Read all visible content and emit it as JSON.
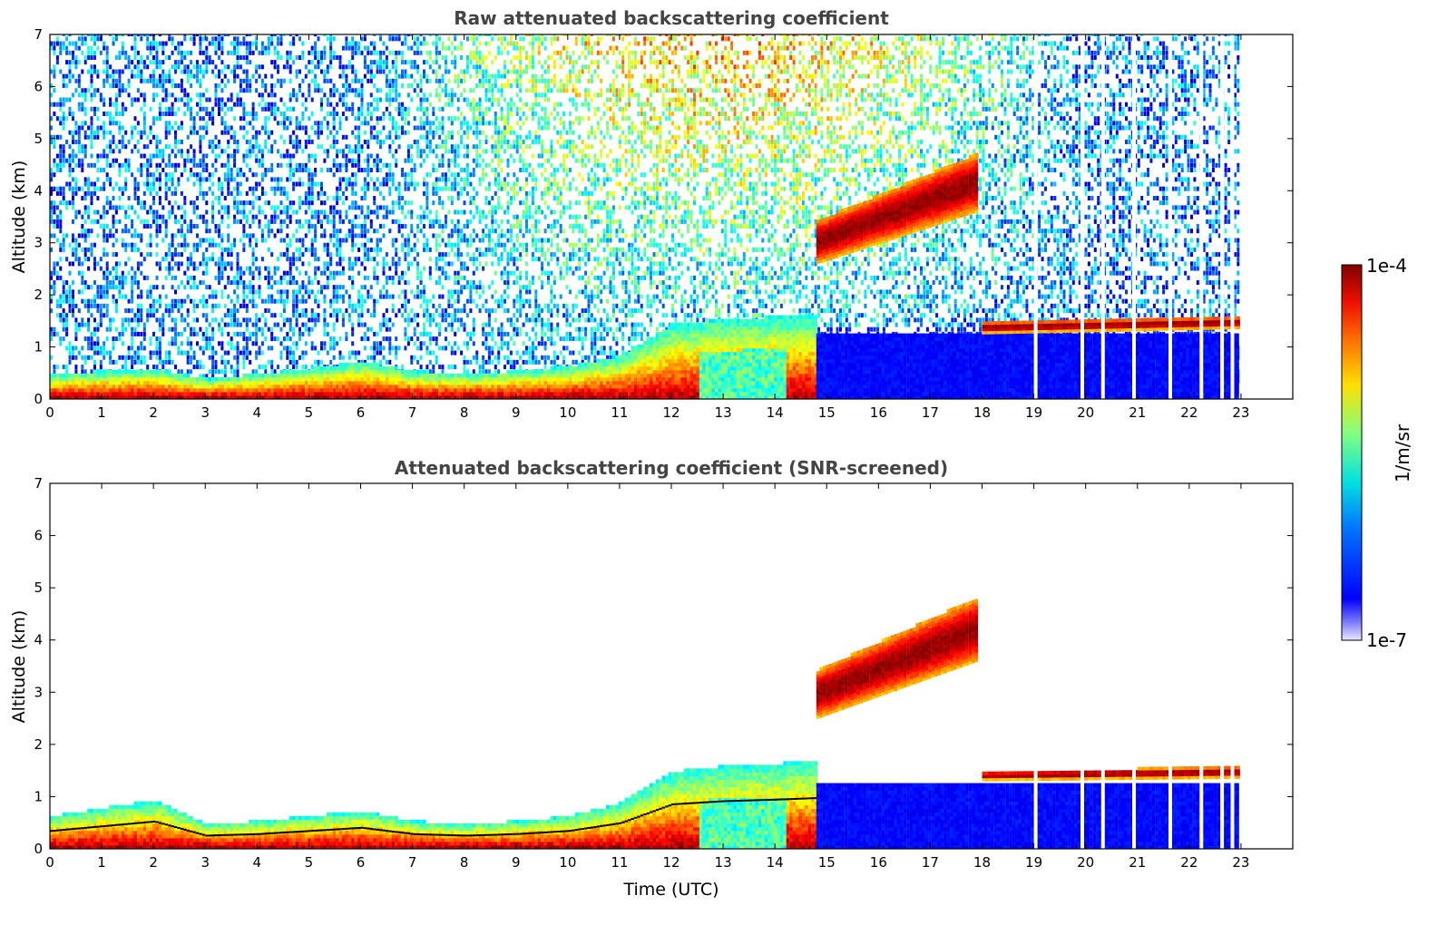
{
  "figure": {
    "colorbar": {
      "max_label": "1e-4",
      "min_label": "1e-7",
      "unit_label": "1/m/sr",
      "scale": "log",
      "range": [
        1e-07,
        0.0001
      ],
      "colormap": "jet"
    },
    "xlabel": "Time (UTC)"
  },
  "chart_data": [
    {
      "type": "heatmap",
      "title": "Raw attenuated backscattering coefficient",
      "xlabel": "",
      "ylabel": "Altitude (km)",
      "xlim": [
        0,
        24
      ],
      "ylim": [
        0,
        7
      ],
      "xticks": [
        "0",
        "1",
        "2",
        "3",
        "4",
        "5",
        "6",
        "7",
        "8",
        "9",
        "10",
        "11",
        "12",
        "13",
        "14",
        "15",
        "16",
        "17",
        "18",
        "19",
        "20",
        "21",
        "22",
        "23"
      ],
      "yticks": [
        "0",
        "1",
        "2",
        "3",
        "4",
        "5",
        "6",
        "7"
      ],
      "data_end_time": 22.95,
      "boundary_layer_top_km": [
        {
          "t": 0,
          "h": 0.45
        },
        {
          "t": 1,
          "h": 0.5
        },
        {
          "t": 2,
          "h": 0.55
        },
        {
          "t": 3,
          "h": 0.35
        },
        {
          "t": 4,
          "h": 0.45
        },
        {
          "t": 5,
          "h": 0.55
        },
        {
          "t": 6,
          "h": 0.7
        },
        {
          "t": 7,
          "h": 0.5
        },
        {
          "t": 8,
          "h": 0.45
        },
        {
          "t": 9,
          "h": 0.5
        },
        {
          "t": 10,
          "h": 0.6
        },
        {
          "t": 11,
          "h": 0.8
        },
        {
          "t": 12,
          "h": 1.4
        },
        {
          "t": 13,
          "h": 1.5
        },
        {
          "t": 14,
          "h": 1.55
        },
        {
          "t": 14.8,
          "h": 1.6
        }
      ],
      "cloud_layers": [
        {
          "t_start": 14.8,
          "t_end": 17.9,
          "base_start_km": 2.6,
          "base_end_km": 3.6,
          "top_start_km": 3.4,
          "top_end_km": 4.7
        },
        {
          "t_start": 18.0,
          "t_end": 22.95,
          "base_start_km": 1.25,
          "base_end_km": 1.35,
          "top_start_km": 1.45,
          "top_end_km": 1.55
        }
      ]
    },
    {
      "type": "heatmap",
      "title": "Attenuated backscattering coefficient (SNR-screened)",
      "xlabel": "Time (UTC)",
      "ylabel": "Altitude (km)",
      "xlim": [
        0,
        24
      ],
      "ylim": [
        0,
        7
      ],
      "xticks": [
        "0",
        "1",
        "2",
        "3",
        "4",
        "5",
        "6",
        "7",
        "8",
        "9",
        "10",
        "11",
        "12",
        "13",
        "14",
        "15",
        "16",
        "17",
        "18",
        "19",
        "20",
        "21",
        "22",
        "23"
      ],
      "yticks": [
        "0",
        "1",
        "2",
        "3",
        "4",
        "5",
        "6",
        "7"
      ],
      "data_end_time": 22.95,
      "boundary_layer_top_km": [
        {
          "t": 0,
          "h": 0.6
        },
        {
          "t": 1,
          "h": 0.75
        },
        {
          "t": 2,
          "h": 0.9
        },
        {
          "t": 3,
          "h": 0.45
        },
        {
          "t": 4,
          "h": 0.5
        },
        {
          "t": 5,
          "h": 0.6
        },
        {
          "t": 6,
          "h": 0.7
        },
        {
          "t": 7,
          "h": 0.5
        },
        {
          "t": 8,
          "h": 0.45
        },
        {
          "t": 9,
          "h": 0.5
        },
        {
          "t": 10,
          "h": 0.6
        },
        {
          "t": 11,
          "h": 0.85
        },
        {
          "t": 12,
          "h": 1.45
        },
        {
          "t": 13,
          "h": 1.55
        },
        {
          "t": 14,
          "h": 1.6
        },
        {
          "t": 14.8,
          "h": 1.65
        }
      ],
      "cloud_layers": [
        {
          "t_start": 14.8,
          "t_end": 17.9,
          "base_start_km": 2.5,
          "base_end_km": 3.6,
          "top_start_km": 3.4,
          "top_end_km": 4.8
        },
        {
          "t_start": 18.0,
          "t_end": 22.95,
          "base_start_km": 1.3,
          "base_end_km": 1.35,
          "top_start_km": 1.45,
          "top_end_km": 1.55
        }
      ]
    }
  ]
}
